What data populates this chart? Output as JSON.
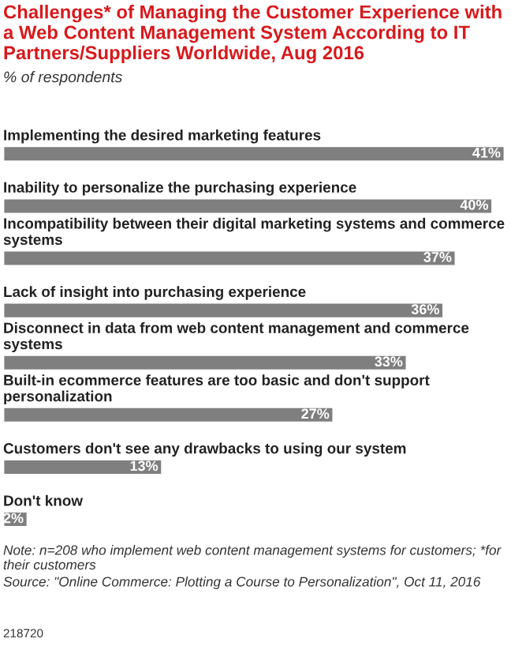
{
  "chart_data": {
    "type": "bar",
    "orientation": "horizontal",
    "title": "Challenges* of Managing the Customer Experience with a Web Content Management System According to IT Partners/Suppliers Worldwide, Aug 2016",
    "subtitle": "% of respondents",
    "categories": [
      "Implementing the desired marketing features",
      "Inability to personalize the purchasing experience",
      "Incompatibility between their digital marketing systems and commerce systems",
      "Lack of insight into purchasing experience",
      "Disconnect in data from web content management and commerce systems",
      "Built-in ecommerce features are too basic and don't support personalization",
      "Customers don't see any drawbacks to using our system",
      "Don't know"
    ],
    "values": [
      41,
      40,
      37,
      36,
      33,
      27,
      13,
      2
    ],
    "value_labels": [
      "41%",
      "40%",
      "37%",
      "36%",
      "33%",
      "27%",
      "13%",
      "2%"
    ],
    "color": "#7f7f7f",
    "annotations": [
      "Note: n=208 who implement web content management systems for customers; *for their customers",
      "Source: \"Online Commerce: Plotting a Course to Personalization\", Oct 11, 2016",
      "218720"
    ]
  }
}
